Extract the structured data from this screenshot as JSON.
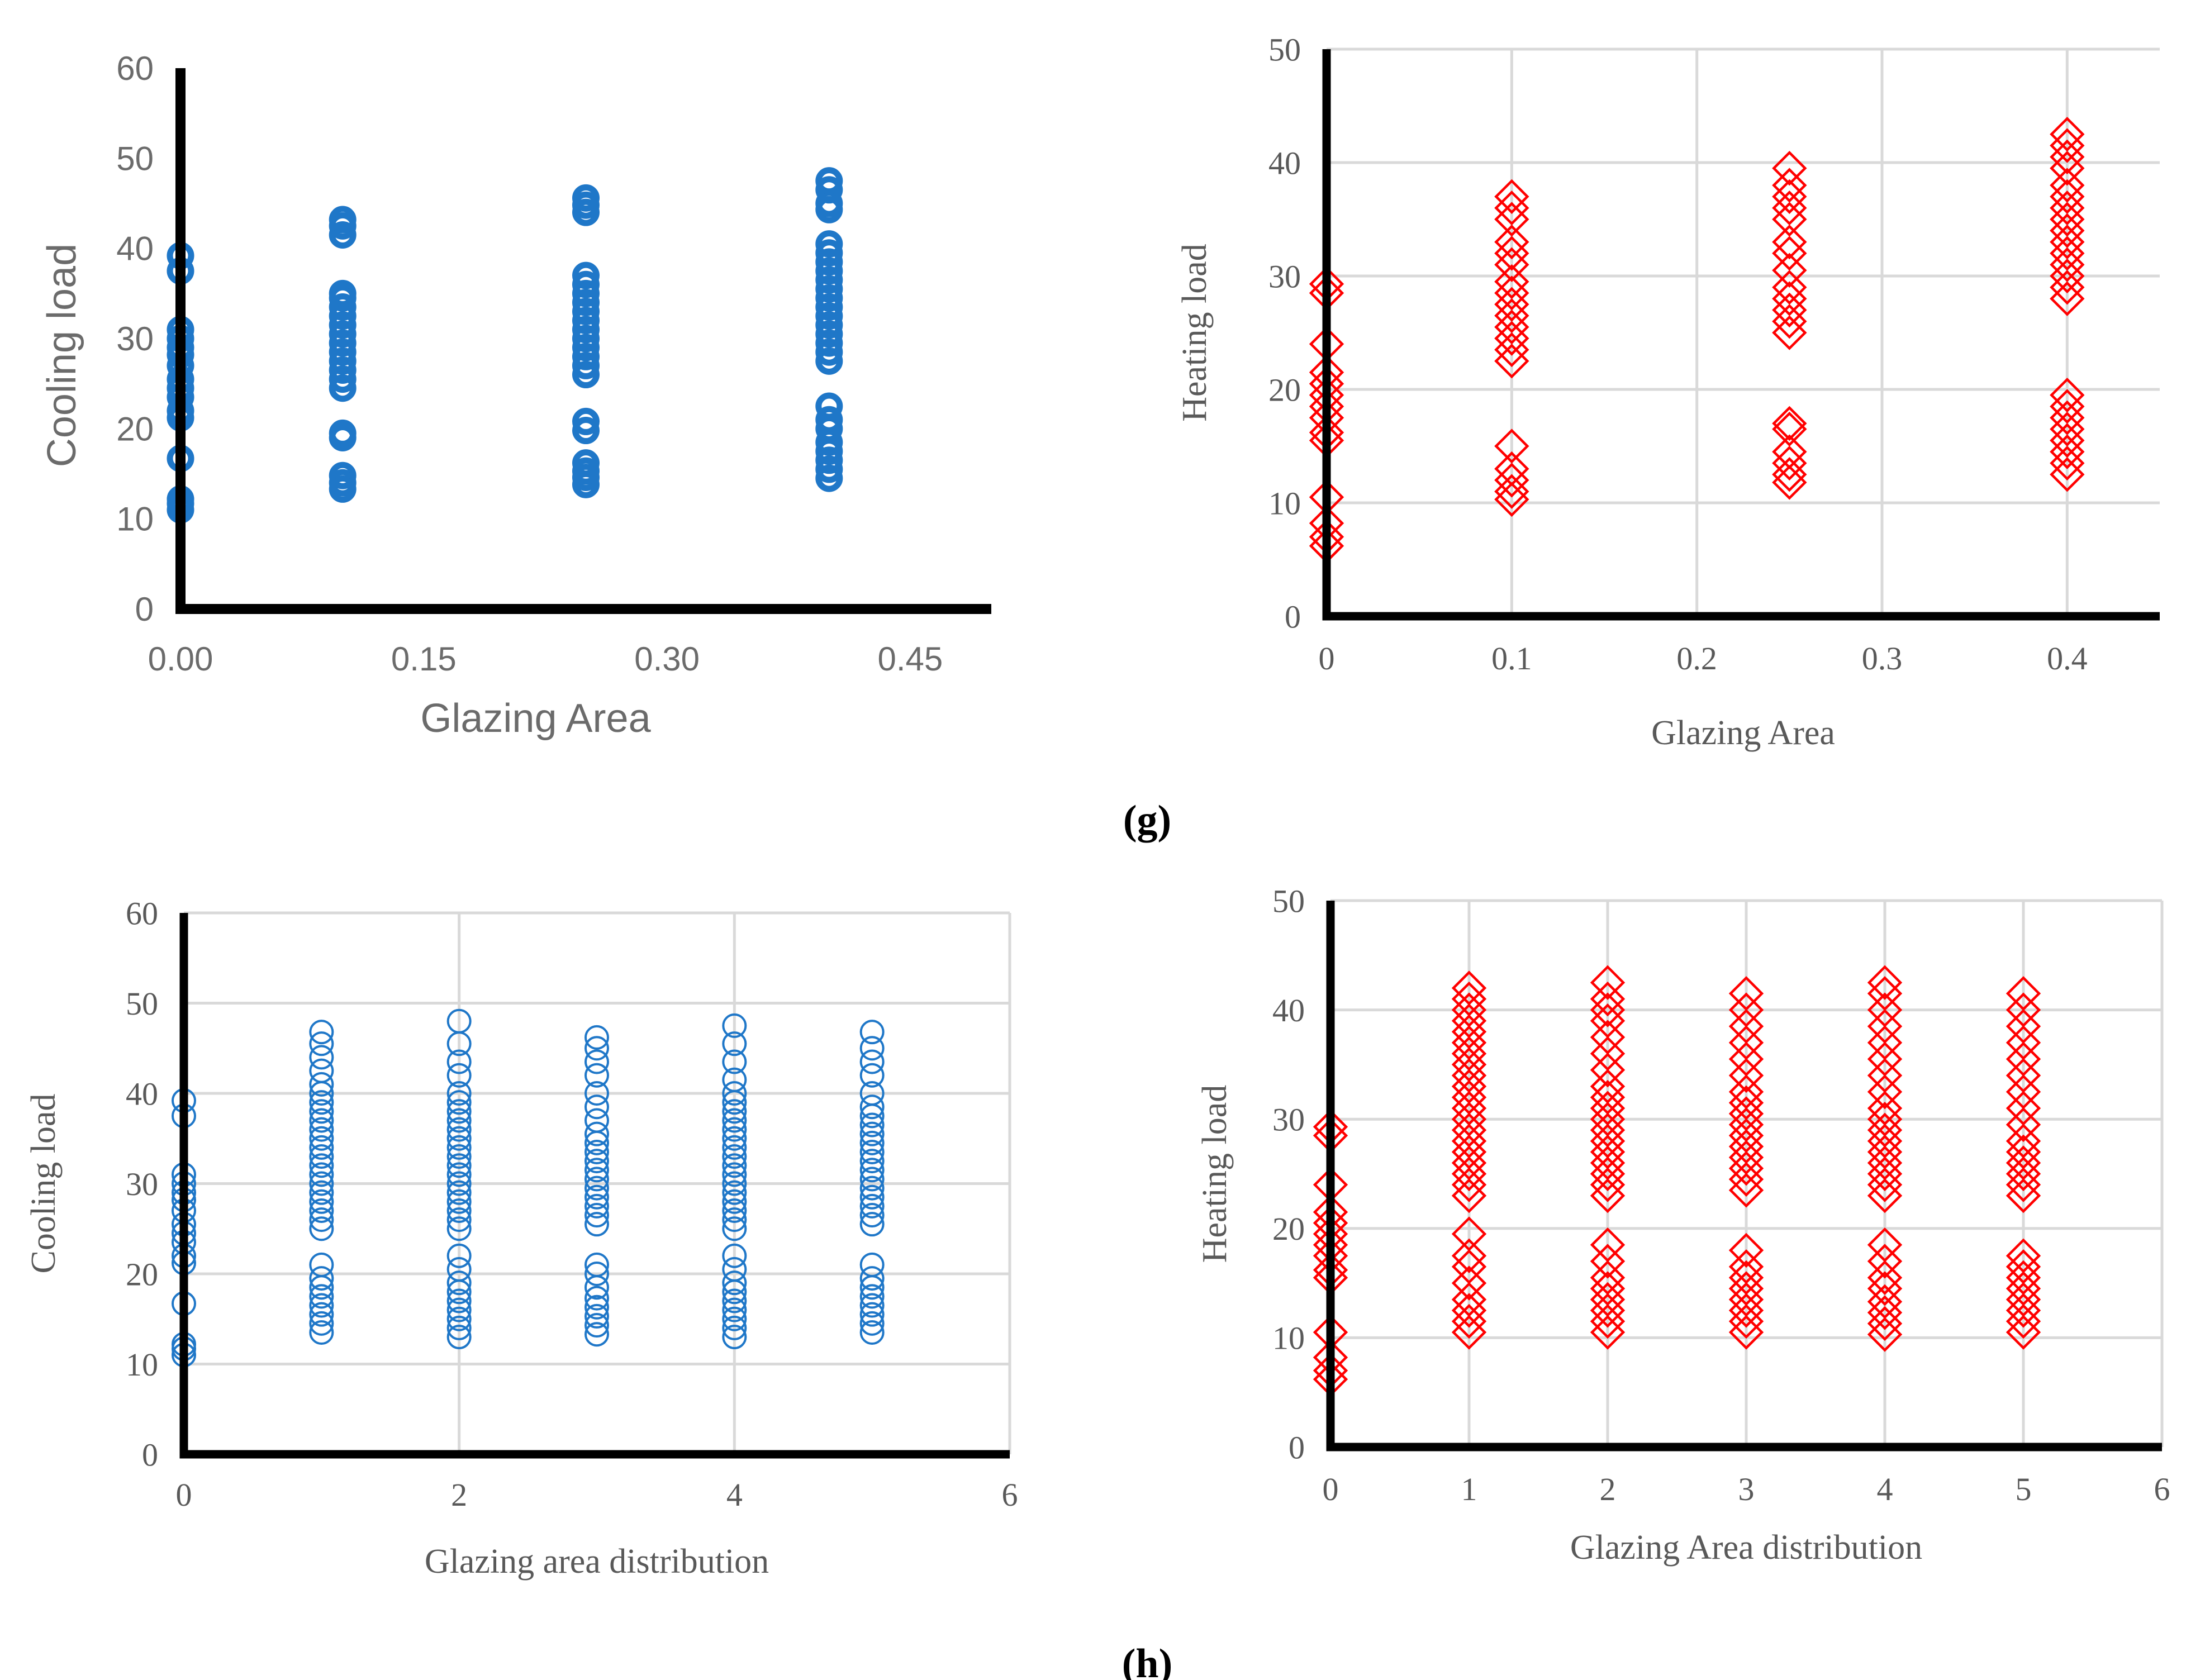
{
  "figure": {
    "panel_labels": [
      "(g)",
      "(h)"
    ]
  },
  "chart_data": [
    {
      "id": "g-cool",
      "type": "scatter",
      "style": "sans",
      "marker": "circle-bold",
      "color": "#1f77c8",
      "grid": false,
      "xlabel": "Glazing Area",
      "ylabel": "Cooling load",
      "xlim": [
        0,
        0.5
      ],
      "ylim": [
        0,
        60
      ],
      "xticks": [
        0,
        0.15,
        0.3,
        0.45
      ],
      "xtick_labels": [
        "0.00",
        "0.15",
        "0.30",
        "0.45"
      ],
      "yticks": [
        0,
        10,
        20,
        30,
        40,
        50,
        60
      ],
      "ytick_labels": [
        "0",
        "10",
        "20",
        "30",
        "40",
        "50",
        "60"
      ],
      "series": [
        {
          "x": 0,
          "y": [
            11,
            11.7,
            12.2,
            16.7,
            21.2,
            22,
            23.5,
            24.5,
            25.5,
            27,
            28.2,
            29,
            30,
            31,
            37.5,
            39.2
          ]
        },
        {
          "x": 0.1,
          "y": [
            13.3,
            14,
            14.8,
            19,
            19.5,
            24.5,
            25.5,
            26.5,
            27.5,
            28.5,
            29.5,
            30.5,
            31.5,
            32.5,
            33.5,
            34.5,
            35,
            41.5,
            42.5,
            43.2
          ]
        },
        {
          "x": 0.25,
          "y": [
            13.8,
            14.6,
            15.3,
            16.2,
            19.8,
            20.8,
            26,
            27,
            28,
            29,
            30,
            31,
            32,
            33,
            34,
            35,
            36,
            37,
            44,
            44.8,
            45.6
          ]
        },
        {
          "x": 0.4,
          "y": [
            14.5,
            15.5,
            16.5,
            17.5,
            18.5,
            20,
            21,
            22.5,
            27.5,
            28.5,
            29.5,
            30.5,
            31.5,
            32.5,
            33.5,
            34.5,
            35.5,
            36.5,
            37.5,
            38.5,
            39.5,
            40.5,
            44.3,
            45,
            46.5,
            47.5
          ]
        }
      ]
    },
    {
      "id": "g-heat",
      "type": "scatter",
      "style": "serif",
      "marker": "diamond",
      "color": "#ff0000",
      "grid": true,
      "xlabel": "Glazing Area",
      "ylabel": "Heating load",
      "xlim": [
        0,
        0.45
      ],
      "ylim": [
        0,
        50
      ],
      "xticks": [
        0,
        0.1,
        0.2,
        0.3,
        0.4
      ],
      "xtick_labels": [
        "0",
        "0.1",
        "0.2",
        "0.3",
        "0.4"
      ],
      "yticks": [
        0,
        10,
        20,
        30,
        40,
        50
      ],
      "ytick_labels": [
        "0",
        "10",
        "20",
        "30",
        "40",
        "50"
      ],
      "series": [
        {
          "x": 0,
          "y": [
            6.2,
            7,
            8.2,
            10.5,
            15.5,
            16.2,
            17.5,
            18.5,
            19.5,
            20.5,
            21.5,
            24,
            28.5,
            29.3
          ]
        },
        {
          "x": 0.1,
          "y": [
            10.3,
            11,
            12,
            13,
            15,
            22.5,
            23.5,
            24.5,
            25.5,
            26.5,
            27.5,
            28.5,
            29.5,
            31,
            32,
            33,
            35,
            36,
            37
          ]
        },
        {
          "x": 0.25,
          "y": [
            11.8,
            12.5,
            13.5,
            14.5,
            16.5,
            17,
            25,
            26,
            27,
            28,
            29,
            30.5,
            32,
            33,
            35,
            36,
            37,
            38,
            39.5
          ]
        },
        {
          "x": 0.4,
          "y": [
            12.5,
            13.5,
            14.5,
            15.5,
            16.5,
            17.5,
            18.5,
            19.5,
            28,
            29,
            30,
            31,
            32,
            33,
            34,
            35,
            36,
            37,
            38,
            39.5,
            40.5,
            41.5,
            42.5
          ]
        }
      ]
    },
    {
      "id": "h-cool",
      "type": "scatter",
      "style": "serif",
      "marker": "circle",
      "color": "#1f77c8",
      "grid": true,
      "xlabel": "Glazing area distribution",
      "ylabel": "Cooling load",
      "xlim": [
        0,
        6
      ],
      "ylim": [
        0,
        60
      ],
      "xticks": [
        0,
        2,
        4,
        6
      ],
      "xtick_labels": [
        "0",
        "2",
        "4",
        "6"
      ],
      "yticks": [
        0,
        10,
        20,
        30,
        40,
        50,
        60
      ],
      "ytick_labels": [
        "0",
        "10",
        "20",
        "30",
        "40",
        "50",
        "60"
      ],
      "series": [
        {
          "x": 0,
          "y": [
            11,
            11.7,
            12.2,
            16.7,
            21.2,
            22,
            23.5,
            24.5,
            25.5,
            27,
            28.2,
            29,
            30,
            31,
            37.5,
            39.2
          ]
        },
        {
          "x": 1,
          "y": [
            13.5,
            14.5,
            15.5,
            16.5,
            17.5,
            18.5,
            19.5,
            21,
            25,
            26,
            27,
            28,
            29,
            30,
            31,
            32,
            33,
            34,
            35,
            36,
            37,
            38,
            39,
            40,
            41,
            42.5,
            44,
            45.5,
            46.8
          ]
        },
        {
          "x": 2,
          "y": [
            13,
            14,
            15,
            16,
            17,
            18,
            19,
            20.5,
            22,
            25,
            26,
            27,
            28,
            29,
            30,
            31,
            32,
            33,
            34,
            35,
            36,
            37,
            38,
            39,
            40,
            42,
            43.5,
            45.5,
            48
          ]
        },
        {
          "x": 3,
          "y": [
            13.3,
            14.3,
            15.3,
            16.3,
            17.3,
            18.5,
            20,
            21,
            25.5,
            26.5,
            27.5,
            28.5,
            29.5,
            30.5,
            31.5,
            32.5,
            33.5,
            34.5,
            35.5,
            37,
            38.5,
            40,
            42,
            43.5,
            45,
            46.2
          ]
        },
        {
          "x": 4,
          "y": [
            13,
            14,
            15,
            16,
            17,
            18,
            19,
            20.5,
            22,
            25,
            26,
            27,
            28,
            29,
            30,
            31,
            32,
            33,
            34,
            35,
            36,
            37,
            38,
            39,
            40,
            41.5,
            43.5,
            45.5,
            47.5
          ]
        },
        {
          "x": 5,
          "y": [
            13.5,
            14.5,
            15.5,
            16.5,
            17.5,
            18.5,
            19.5,
            21,
            25.5,
            26.5,
            27.5,
            28.5,
            29.5,
            30.5,
            31.5,
            32.5,
            33.5,
            34.5,
            35.5,
            36.5,
            37.5,
            38.5,
            40,
            42,
            43.5,
            45,
            46.8
          ]
        }
      ]
    },
    {
      "id": "h-heat",
      "type": "scatter",
      "style": "serif",
      "marker": "diamond",
      "color": "#ff0000",
      "grid": true,
      "xlabel": "Glazing Area distribution",
      "ylabel": "Heating load",
      "xlim": [
        0,
        6
      ],
      "ylim": [
        0,
        50
      ],
      "xticks": [
        0,
        1,
        2,
        3,
        4,
        5,
        6
      ],
      "xtick_labels": [
        "0",
        "1",
        "2",
        "3",
        "4",
        "5",
        "6"
      ],
      "yticks": [
        0,
        10,
        20,
        30,
        40,
        50
      ],
      "ytick_labels": [
        "0",
        "10",
        "20",
        "30",
        "40",
        "50"
      ],
      "series": [
        {
          "x": 0,
          "y": [
            6.2,
            7,
            8.2,
            10.5,
            15.5,
            16.2,
            17.5,
            18.5,
            19.5,
            20.5,
            21.5,
            24,
            28.5,
            29.3
          ]
        },
        {
          "x": 1,
          "y": [
            10.5,
            11.5,
            12.5,
            13.5,
            15,
            16.5,
            17.5,
            19.5,
            23,
            24,
            25,
            26,
            27,
            28,
            29,
            30,
            31,
            32,
            33,
            34,
            35,
            36,
            37,
            38,
            39,
            40,
            41,
            42
          ]
        },
        {
          "x": 2,
          "y": [
            10.5,
            11.5,
            12.5,
            13.5,
            14.5,
            15.5,
            17,
            18.5,
            23,
            24,
            25,
            26,
            27,
            28,
            29,
            30,
            31,
            32,
            33,
            34.5,
            36,
            37.5,
            39,
            40,
            41,
            42.5
          ]
        },
        {
          "x": 3,
          "y": [
            10.5,
            11.5,
            12.5,
            13.5,
            14.5,
            15.5,
            16.5,
            18,
            23.5,
            24.5,
            25.5,
            26.5,
            27.5,
            28.5,
            29.5,
            30.5,
            31.5,
            32.5,
            34,
            35.5,
            37,
            38.5,
            40,
            41.5
          ]
        },
        {
          "x": 4,
          "y": [
            10.3,
            11.3,
            12.3,
            13.3,
            14.5,
            15.5,
            17,
            18.5,
            23,
            24,
            25,
            26,
            27,
            28,
            29,
            30,
            31,
            32.5,
            34,
            35.5,
            37,
            38.5,
            40,
            41.5,
            42.5
          ]
        },
        {
          "x": 5,
          "y": [
            10.5,
            11.5,
            12.5,
            13.5,
            14.5,
            15.5,
            16.5,
            17.5,
            23,
            24,
            25,
            26,
            27,
            28,
            29.5,
            31,
            32.5,
            34,
            35.5,
            37,
            38.5,
            40,
            41.5
          ]
        }
      ]
    }
  ]
}
